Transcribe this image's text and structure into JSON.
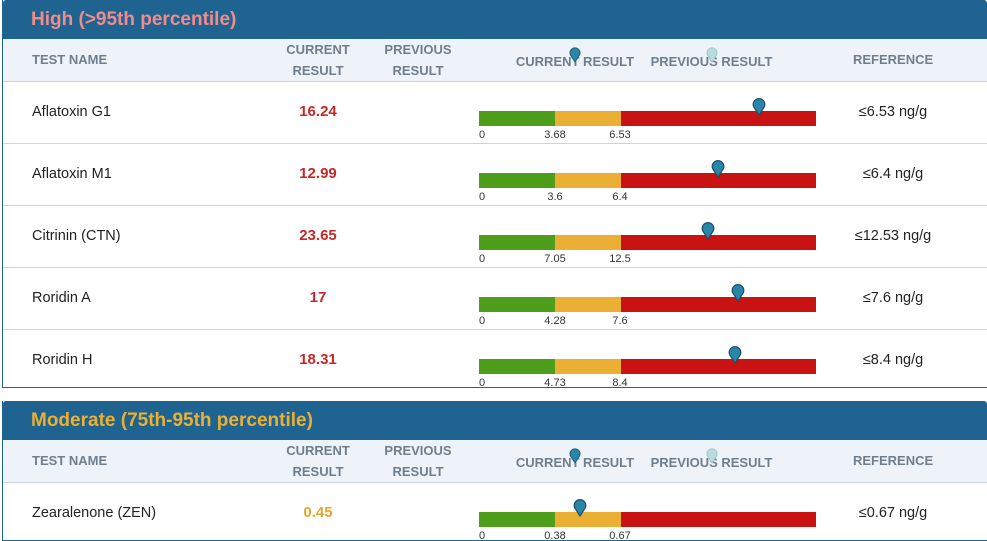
{
  "headers": {
    "test_name": "TEST NAME",
    "current_line1": "CURRENT",
    "current_line2": "RESULT",
    "previous_line1": "PREVIOUS",
    "previous_line2": "RESULT",
    "current_result": "CURRENT RESULT",
    "previous_result": "PREVIOUS RESULT",
    "reference": "REFERENCE"
  },
  "colors": {
    "header_bg": "#1f6391",
    "high_title": "#f28b8b",
    "moderate_title": "#ebb033",
    "high_value": "#c62828",
    "moderate_value": "#e3a72f",
    "green": "#4e9d1b",
    "yellow": "#ebb033",
    "red": "#c91212",
    "marker_current": "#2a86a8",
    "marker_previous": "#b8dde0"
  },
  "sections": [
    {
      "title": "High (>95th percentile)",
      "level": "high",
      "rows": [
        {
          "name": "Aflatoxin G1",
          "value": "16.24",
          "reference": "≤6.53 ng/g",
          "t0": "0",
          "t1": "3.68",
          "t2": "6.53",
          "marker_fraction": 0.83
        },
        {
          "name": "Aflatoxin M1",
          "value": "12.99",
          "reference": "≤6.4 ng/g",
          "t0": "0",
          "t1": "3.6",
          "t2": "6.4",
          "marker_fraction": 0.71
        },
        {
          "name": "Citrinin (CTN)",
          "value": "23.65",
          "reference": "≤12.53 ng/g",
          "t0": "0",
          "t1": "7.05",
          "t2": "12.5",
          "marker_fraction": 0.68
        },
        {
          "name": "Roridin A",
          "value": "17",
          "reference": "≤7.6 ng/g",
          "t0": "0",
          "t1": "4.28",
          "t2": "7.6",
          "marker_fraction": 0.77
        },
        {
          "name": "Roridin H",
          "value": "18.31",
          "reference": "≤8.4 ng/g",
          "t0": "0",
          "t1": "4.73",
          "t2": "8.4",
          "marker_fraction": 0.76
        }
      ]
    },
    {
      "title": "Moderate (75th-95th percentile)",
      "level": "moderate",
      "rows": [
        {
          "name": "Zearalenone (ZEN)",
          "value": "0.45",
          "reference": "≤0.67 ng/g",
          "t0": "0",
          "t1": "0.38",
          "t2": "0.67",
          "marker_fraction": 0.3
        }
      ]
    }
  ]
}
